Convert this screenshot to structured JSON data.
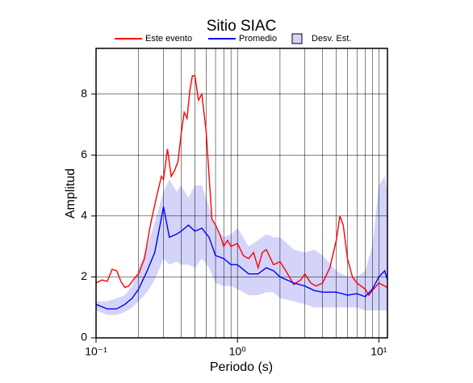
{
  "chart_data": {
    "type": "line",
    "title": "Sitio SIAC",
    "xlabel": "Periodo (s)",
    "ylabel": "Amplitud",
    "xscale": "log",
    "grid": true,
    "xlim": [
      0.1,
      11.5
    ],
    "ylim": [
      0,
      9.5
    ],
    "xticks": [
      {
        "value": 0.1,
        "label": "10⁻¹"
      },
      {
        "value": 1,
        "label": "10⁰"
      },
      {
        "value": 10,
        "label": "10¹"
      }
    ],
    "xgrid": [
      0.2,
      0.3,
      0.4,
      0.5,
      0.6,
      0.7,
      0.8,
      0.9,
      2,
      3,
      4,
      5,
      6,
      7,
      8,
      9
    ],
    "yticks": [
      0,
      2,
      4,
      6,
      8
    ],
    "series": [
      {
        "name": "Este evento",
        "color": "#ff0000",
        "x": [
          0.1,
          0.11,
          0.12,
          0.13,
          0.14,
          0.15,
          0.16,
          0.17,
          0.18,
          0.19,
          0.2,
          0.22,
          0.24,
          0.25,
          0.27,
          0.29,
          0.3,
          0.32,
          0.34,
          0.36,
          0.38,
          0.4,
          0.42,
          0.44,
          0.46,
          0.48,
          0.5,
          0.53,
          0.56,
          0.6,
          0.63,
          0.66,
          0.7,
          0.75,
          0.8,
          0.85,
          0.9,
          1.0,
          1.1,
          1.2,
          1.3,
          1.4,
          1.5,
          1.6,
          1.8,
          2.0,
          2.2,
          2.5,
          2.8,
          3.0,
          3.3,
          3.6,
          4.0,
          4.5,
          5.0,
          5.3,
          5.6,
          6.0,
          6.5,
          7.0,
          8.0,
          8.5,
          9.0,
          10,
          11,
          11.5
        ],
        "values": [
          1.8,
          1.9,
          1.85,
          2.25,
          2.2,
          1.85,
          1.65,
          1.7,
          1.85,
          2.0,
          2.1,
          2.6,
          3.6,
          4.0,
          4.7,
          5.3,
          5.2,
          6.2,
          5.3,
          5.5,
          5.8,
          6.7,
          7.4,
          7.2,
          8.1,
          8.6,
          8.6,
          7.8,
          8.0,
          6.8,
          5.3,
          3.9,
          3.7,
          3.4,
          3.0,
          3.2,
          3.0,
          3.1,
          2.7,
          2.6,
          2.8,
          2.3,
          2.8,
          2.9,
          2.4,
          2.5,
          2.2,
          1.75,
          1.9,
          2.1,
          1.8,
          1.7,
          1.8,
          2.3,
          3.2,
          4.0,
          3.7,
          2.6,
          2.0,
          1.8,
          1.6,
          1.4,
          1.55,
          1.8,
          1.7,
          1.65
        ]
      },
      {
        "name": "Promedio",
        "color": "#0000ff",
        "x": [
          0.1,
          0.12,
          0.14,
          0.16,
          0.18,
          0.2,
          0.23,
          0.26,
          0.3,
          0.33,
          0.37,
          0.4,
          0.45,
          0.5,
          0.56,
          0.63,
          0.7,
          0.8,
          0.9,
          1.0,
          1.2,
          1.4,
          1.6,
          1.8,
          2.0,
          2.5,
          3.0,
          3.5,
          4.0,
          5.0,
          6.0,
          7.0,
          8.0,
          9.0,
          10,
          11,
          11.5
        ],
        "values": [
          1.1,
          0.95,
          0.95,
          1.1,
          1.3,
          1.6,
          2.2,
          2.8,
          4.3,
          3.3,
          3.4,
          3.5,
          3.7,
          3.5,
          3.6,
          3.3,
          2.7,
          2.6,
          2.4,
          2.4,
          2.1,
          2.1,
          2.3,
          2.2,
          2.0,
          1.8,
          1.7,
          1.55,
          1.5,
          1.5,
          1.4,
          1.45,
          1.35,
          1.6,
          2.0,
          2.2,
          1.9
        ]
      },
      {
        "name": "Desv. Est.",
        "type": "band",
        "color": "#d4d4fb",
        "x": [
          0.1,
          0.12,
          0.14,
          0.16,
          0.18,
          0.2,
          0.23,
          0.26,
          0.3,
          0.33,
          0.37,
          0.4,
          0.45,
          0.5,
          0.56,
          0.63,
          0.7,
          0.8,
          0.9,
          1.0,
          1.2,
          1.4,
          1.6,
          1.8,
          2.0,
          2.5,
          3.0,
          3.5,
          4.0,
          5.0,
          6.0,
          7.0,
          8.0,
          9.0,
          10,
          11,
          11.5
        ],
        "upper": [
          1.2,
          1.2,
          1.3,
          1.4,
          1.7,
          2.3,
          3.0,
          3.8,
          4.8,
          5.2,
          4.8,
          5.0,
          4.6,
          5.0,
          5.0,
          4.3,
          3.6,
          3.3,
          3.4,
          3.6,
          3.0,
          3.2,
          3.4,
          3.3,
          3.3,
          2.9,
          2.8,
          2.9,
          2.7,
          2.2,
          2.0,
          2.0,
          2.2,
          3.0,
          5.0,
          5.3,
          4.8
        ],
        "lower": [
          0.9,
          0.75,
          0.75,
          0.85,
          1.0,
          1.2,
          1.5,
          1.9,
          2.6,
          2.4,
          2.5,
          2.4,
          2.4,
          2.3,
          2.6,
          2.3,
          1.8,
          1.7,
          1.7,
          1.6,
          1.4,
          1.4,
          1.5,
          1.5,
          1.3,
          1.2,
          1.1,
          1.0,
          1.0,
          1.0,
          1.0,
          1.0,
          0.9,
          0.9,
          0.9,
          0.9,
          0.9
        ]
      }
    ]
  }
}
